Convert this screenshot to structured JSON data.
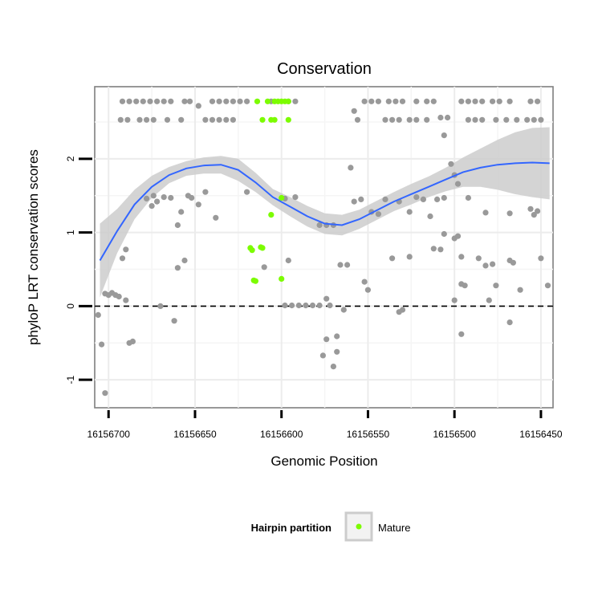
{
  "chart_data": {
    "type": "scatter",
    "title": "Conservation",
    "xlabel": "Genomic Position",
    "ylabel": "phyloP LRT conservation scores",
    "x_reversed": true,
    "xlim": [
      16156708,
      16156443
    ],
    "ylim": [
      -1.38,
      2.98
    ],
    "x_ticks": [
      16156700,
      16156650,
      16156600,
      16156550,
      16156500,
      16156450
    ],
    "x_tick_labels": [
      "16156700",
      "16156650",
      "16156600",
      "16156550",
      "16156500",
      "16156450"
    ],
    "y_ticks": [
      -1,
      0,
      1,
      2
    ],
    "y_tick_labels": [
      "-1",
      "0",
      "1",
      "2"
    ],
    "reference_line": {
      "y": 0,
      "style": "dashed"
    },
    "grid": true,
    "legend": {
      "title": "Hairpin partition",
      "placement": "bottom",
      "entries": [
        {
          "label": "Mature",
          "color": "#7CFC00"
        }
      ]
    },
    "colors": {
      "other": "#999999",
      "mature": "#7CFC00",
      "smooth_line": "#3366FF",
      "ribbon": "#CCCCCC"
    },
    "series": [
      {
        "name": "",
        "color": "#999999",
        "points": [
          [
            16156692,
            2.78
          ],
          [
            16156688,
            2.78
          ],
          [
            16156684,
            2.78
          ],
          [
            16156680,
            2.78
          ],
          [
            16156676,
            2.78
          ],
          [
            16156672,
            2.78
          ],
          [
            16156668,
            2.78
          ],
          [
            16156664,
            2.78
          ],
          [
            16156656,
            2.78
          ],
          [
            16156653,
            2.78
          ],
          [
            16156648,
            2.72
          ],
          [
            16156640,
            2.78
          ],
          [
            16156636,
            2.78
          ],
          [
            16156632,
            2.78
          ],
          [
            16156628,
            2.78
          ],
          [
            16156624,
            2.78
          ],
          [
            16156620,
            2.78
          ],
          [
            16156606,
            2.78
          ],
          [
            16156596,
            2.78
          ],
          [
            16156592,
            2.78
          ],
          [
            16156552,
            2.78
          ],
          [
            16156548,
            2.78
          ],
          [
            16156544,
            2.78
          ],
          [
            16156538,
            2.78
          ],
          [
            16156534,
            2.78
          ],
          [
            16156530,
            2.78
          ],
          [
            16156522,
            2.78
          ],
          [
            16156516,
            2.78
          ],
          [
            16156512,
            2.78
          ],
          [
            16156496,
            2.78
          ],
          [
            16156492,
            2.78
          ],
          [
            16156488,
            2.78
          ],
          [
            16156484,
            2.78
          ],
          [
            16156478,
            2.78
          ],
          [
            16156474,
            2.78
          ],
          [
            16156468,
            2.78
          ],
          [
            16156456,
            2.78
          ],
          [
            16156452,
            2.78
          ],
          [
            16156693,
            2.53
          ],
          [
            16156689,
            2.53
          ],
          [
            16156682,
            2.53
          ],
          [
            16156678,
            2.53
          ],
          [
            16156674,
            2.53
          ],
          [
            16156666,
            2.53
          ],
          [
            16156658,
            2.53
          ],
          [
            16156644,
            2.53
          ],
          [
            16156640,
            2.53
          ],
          [
            16156636,
            2.53
          ],
          [
            16156632,
            2.53
          ],
          [
            16156628,
            2.53
          ],
          [
            16156556,
            2.53
          ],
          [
            16156540,
            2.53
          ],
          [
            16156536,
            2.53
          ],
          [
            16156532,
            2.53
          ],
          [
            16156526,
            2.53
          ],
          [
            16156522,
            2.53
          ],
          [
            16156516,
            2.53
          ],
          [
            16156508,
            2.56
          ],
          [
            16156504,
            2.56
          ],
          [
            16156492,
            2.53
          ],
          [
            16156488,
            2.53
          ],
          [
            16156484,
            2.53
          ],
          [
            16156476,
            2.53
          ],
          [
            16156470,
            2.53
          ],
          [
            16156464,
            2.53
          ],
          [
            16156458,
            2.53
          ],
          [
            16156454,
            2.53
          ],
          [
            16156450,
            2.53
          ],
          [
            16156558,
            2.65
          ],
          [
            16156506,
            2.32
          ],
          [
            16156560,
            1.88
          ],
          [
            16156502,
            1.93
          ],
          [
            16156500,
            1.78
          ],
          [
            16156498,
            1.66
          ],
          [
            16156678,
            1.46
          ],
          [
            16156674,
            1.5
          ],
          [
            16156672,
            1.42
          ],
          [
            16156668,
            1.48
          ],
          [
            16156664,
            1.47
          ],
          [
            16156658,
            1.28
          ],
          [
            16156654,
            1.5
          ],
          [
            16156652,
            1.47
          ],
          [
            16156648,
            1.38
          ],
          [
            16156644,
            1.55
          ],
          [
            16156638,
            1.2
          ],
          [
            16156620,
            1.55
          ],
          [
            16156598,
            1.46
          ],
          [
            16156592,
            1.48
          ],
          [
            16156578,
            1.1
          ],
          [
            16156574,
            1.1
          ],
          [
            16156570,
            1.1
          ],
          [
            16156558,
            1.42
          ],
          [
            16156554,
            1.45
          ],
          [
            16156548,
            1.28
          ],
          [
            16156544,
            1.25
          ],
          [
            16156540,
            1.45
          ],
          [
            16156532,
            1.42
          ],
          [
            16156526,
            1.28
          ],
          [
            16156522,
            1.48
          ],
          [
            16156518,
            1.45
          ],
          [
            16156514,
            1.22
          ],
          [
            16156510,
            1.45
          ],
          [
            16156506,
            1.47
          ],
          [
            16156492,
            1.47
          ],
          [
            16156482,
            1.27
          ],
          [
            16156468,
            1.26
          ],
          [
            16156452,
            1.29
          ],
          [
            16156675,
            1.36
          ],
          [
            16156660,
            1.1
          ],
          [
            16156610,
            0.53
          ],
          [
            16156596,
            0.62
          ],
          [
            16156566,
            0.56
          ],
          [
            16156562,
            0.56
          ],
          [
            16156552,
            0.33
          ],
          [
            16156550,
            0.22
          ],
          [
            16156536,
            0.65
          ],
          [
            16156526,
            0.67
          ],
          [
            16156512,
            0.78
          ],
          [
            16156508,
            0.77
          ],
          [
            16156500,
            0.92
          ],
          [
            16156496,
            0.67
          ],
          [
            16156486,
            0.65
          ],
          [
            16156482,
            0.55
          ],
          [
            16156476,
            0.28
          ],
          [
            16156468,
            0.62
          ],
          [
            16156462,
            0.22
          ],
          [
            16156456,
            1.32
          ],
          [
            16156454,
            1.24
          ],
          [
            16156450,
            0.65
          ],
          [
            16156446,
            0.28
          ],
          [
            16156692,
            0.65
          ],
          [
            16156690,
            0.77
          ],
          [
            16156660,
            0.52
          ],
          [
            16156656,
            0.62
          ],
          [
            16156506,
            0.98
          ],
          [
            16156498,
            0.95
          ],
          [
            16156496,
            0.3
          ],
          [
            16156494,
            0.28
          ],
          [
            16156478,
            0.57
          ],
          [
            16156466,
            0.59
          ],
          [
            16156702,
            0.17
          ],
          [
            16156700,
            0.15
          ],
          [
            16156698,
            0.18
          ],
          [
            16156696,
            0.15
          ],
          [
            16156694,
            0.13
          ],
          [
            16156690,
            0.08
          ],
          [
            16156686,
            -0.48
          ],
          [
            16156688,
            -0.5
          ],
          [
            16156706,
            -0.12
          ],
          [
            16156704,
            -0.52
          ],
          [
            16156702,
            -1.18
          ],
          [
            16156670,
            0.0
          ],
          [
            16156662,
            -0.2
          ],
          [
            16156598,
            0.01
          ],
          [
            16156594,
            0.01
          ],
          [
            16156590,
            0.01
          ],
          [
            16156586,
            0.01
          ],
          [
            16156582,
            0.01
          ],
          [
            16156578,
            0.01
          ],
          [
            16156572,
            0.01
          ],
          [
            16156568,
            -0.41
          ],
          [
            16156568,
            -0.62
          ],
          [
            16156574,
            -0.45
          ],
          [
            16156576,
            -0.67
          ],
          [
            16156570,
            -0.82
          ],
          [
            16156564,
            -0.05
          ],
          [
            16156574,
            0.1
          ],
          [
            16156530,
            -0.05
          ],
          [
            16156532,
            -0.08
          ],
          [
            16156500,
            0.08
          ],
          [
            16156496,
            -0.38
          ],
          [
            16156480,
            0.08
          ],
          [
            16156468,
            -0.22
          ]
        ]
      },
      {
        "name": "Mature",
        "color": "#7CFC00",
        "points": [
          [
            16156614,
            2.78
          ],
          [
            16156608,
            2.78
          ],
          [
            16156604,
            2.78
          ],
          [
            16156602,
            2.78
          ],
          [
            16156600,
            2.78
          ],
          [
            16156598,
            2.78
          ],
          [
            16156596,
            2.78
          ],
          [
            16156611,
            2.53
          ],
          [
            16156606,
            2.53
          ],
          [
            16156604,
            2.53
          ],
          [
            16156596,
            2.53
          ],
          [
            16156600,
            1.47
          ],
          [
            16156606,
            1.24
          ],
          [
            16156618,
            0.79
          ],
          [
            16156617,
            0.76
          ],
          [
            16156611,
            0.79
          ],
          [
            16156612,
            0.8
          ],
          [
            16156616,
            0.35
          ],
          [
            16156615,
            0.34
          ],
          [
            16156600,
            0.37
          ]
        ]
      }
    ],
    "smooth_fit": {
      "x": [
        16156705,
        16156695,
        16156685,
        16156675,
        16156665,
        16156655,
        16156645,
        16156635,
        16156625,
        16156615,
        16156605,
        16156595,
        16156585,
        16156575,
        16156565,
        16156555,
        16156545,
        16156535,
        16156525,
        16156515,
        16156505,
        16156495,
        16156485,
        16156475,
        16156465,
        16156455,
        16156445
      ],
      "y": [
        0.62,
        1.02,
        1.38,
        1.62,
        1.78,
        1.87,
        1.91,
        1.92,
        1.85,
        1.68,
        1.48,
        1.35,
        1.22,
        1.12,
        1.1,
        1.18,
        1.3,
        1.42,
        1.52,
        1.62,
        1.72,
        1.82,
        1.88,
        1.92,
        1.94,
        1.95,
        1.94
      ],
      "lower": [
        0.12,
        0.72,
        1.18,
        1.47,
        1.67,
        1.77,
        1.8,
        1.8,
        1.7,
        1.55,
        1.37,
        1.22,
        1.08,
        0.98,
        0.96,
        1.05,
        1.17,
        1.29,
        1.38,
        1.48,
        1.56,
        1.62,
        1.62,
        1.58,
        1.52,
        1.48,
        1.45
      ],
      "upper": [
        1.12,
        1.32,
        1.58,
        1.77,
        1.89,
        1.97,
        2.02,
        2.04,
        2.0,
        1.81,
        1.59,
        1.48,
        1.36,
        1.26,
        1.24,
        1.31,
        1.43,
        1.55,
        1.66,
        1.76,
        1.88,
        2.02,
        2.14,
        2.26,
        2.36,
        2.42,
        2.43
      ]
    }
  }
}
